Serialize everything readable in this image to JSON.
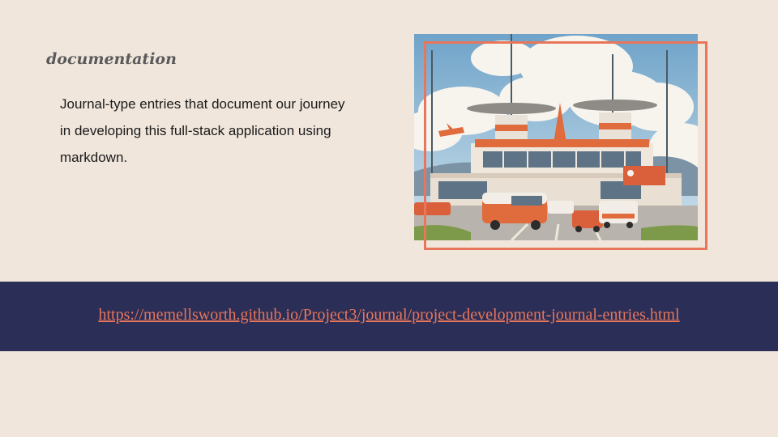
{
  "slide": {
    "heading": "documentation",
    "body": "Journal-type entries that document our journey in developing this full-stack application using markdown.",
    "link": "https://memellsworth.github.io/Project3/journal/project-development-journal-entries.html"
  },
  "colors": {
    "background": "#f0e6dc",
    "band": "#2b2e57",
    "accent": "#e8765a",
    "heading": "#5a5a5a"
  },
  "image": {
    "subject": "illustrated-airport-terminal-with-orange-vehicles"
  }
}
